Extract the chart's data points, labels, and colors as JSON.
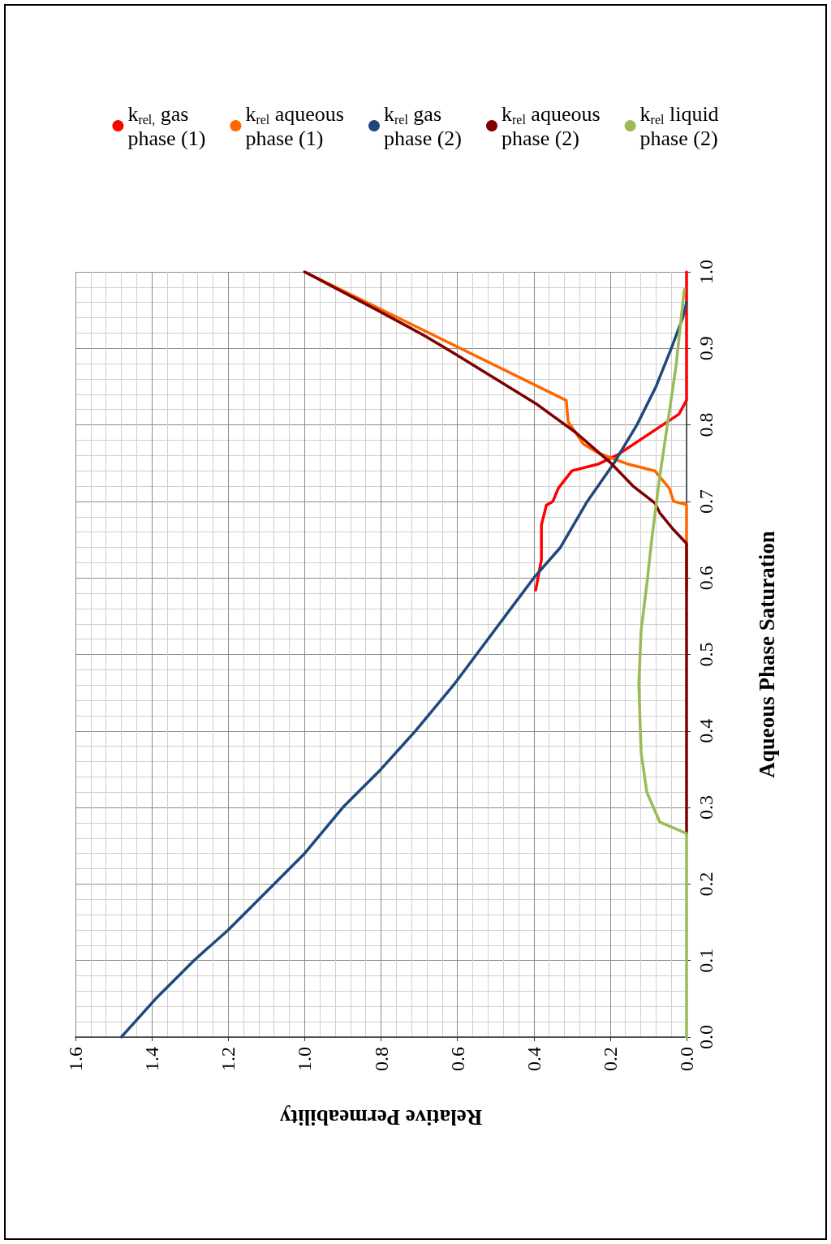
{
  "chart_data": {
    "type": "line",
    "xlabel": "Relative Permeability",
    "ylabel": "Aqueous Phase Saturation",
    "xlim": [
      1.6,
      0
    ],
    "xticks": [
      {
        "value": 0,
        "label": "0.0"
      },
      0.2,
      0.4,
      0.6,
      0.8,
      {
        "value": 1,
        "label": "1.0"
      },
      1.2,
      1.4,
      1.6
    ],
    "ylim": [
      0,
      1
    ],
    "yticks": [
      {
        "value": 0,
        "label": "0.0"
      },
      0.1,
      0.2,
      0.3,
      0.4,
      0.5,
      0.6,
      0.7,
      0.8,
      0.9,
      {
        "value": 1,
        "label": "1.0"
      }
    ],
    "grid": true,
    "legend": "top",
    "series": [
      {
        "name": "k$_{rel,}$ gas phase (1)",
        "color": "#ff0000",
        "values": [
          0.584,
          0.624,
          0.669,
          0.695,
          0.7,
          0.717,
          0.74,
          0.749,
          0.761,
          0.814,
          0.832,
          1.0
        ],
        "x": [
          0.395,
          0.38,
          0.38,
          0.367,
          0.35,
          0.336,
          0.3,
          0.23,
          0.18,
          0.02,
          0.0,
          0.0
        ]
      },
      {
        "name": "k$_{rel}$ aqueous phase (1)",
        "color": "#ff6600",
        "values": [
          0.584,
          0.696,
          0.7,
          0.717,
          0.74,
          0.749,
          0.763,
          0.775,
          0.804,
          0.832,
          1.0
        ],
        "x": [
          0.0,
          0.0,
          0.034,
          0.045,
          0.083,
          0.155,
          0.23,
          0.27,
          0.31,
          0.315,
          1.0
        ]
      },
      {
        "name": "k$_{rel}$ gas phase (2)",
        "color": "#1f497d",
        "values": [
          0,
          0.05,
          0.1,
          0.14,
          0.2,
          0.24,
          0.3,
          0.35,
          0.4,
          0.46,
          0.5,
          0.56,
          0.6,
          0.64,
          0.7,
          0.75,
          0.8,
          0.85,
          0.9,
          0.94,
          0.96
        ],
        "x": [
          1.48,
          1.39,
          1.29,
          1.2,
          1.08,
          1.0,
          0.9,
          0.8,
          0.71,
          0.61,
          0.55,
          0.46,
          0.4,
          0.33,
          0.26,
          0.19,
          0.13,
          0.08,
          0.04,
          0.01,
          0.0
        ]
      },
      {
        "name": "k$_{rel}$ aqueous phase (2)",
        "color": "#7f0000",
        "values": [
          0.266,
          0.645,
          0.663,
          0.685,
          0.698,
          0.72,
          0.751,
          0.79,
          0.828,
          0.894,
          0.916,
          0.95,
          1.0
        ],
        "x": [
          0,
          0,
          0.034,
          0.07,
          0.083,
          0.14,
          0.2,
          0.29,
          0.395,
          0.61,
          0.684,
          0.81,
          1.0
        ]
      },
      {
        "name": "k$_{rel}$ liquid phase (2)",
        "color": "#9bbb59",
        "values": [
          0,
          0.266,
          0.281,
          0.32,
          0.372,
          0.461,
          0.531,
          0.592,
          0.655,
          0.733,
          0.804,
          0.875,
          0.977
        ],
        "x": [
          0,
          0,
          0.07,
          0.104,
          0.119,
          0.125,
          0.119,
          0.104,
          0.09,
          0.07,
          0.049,
          0.028,
          0.006
        ]
      }
    ]
  }
}
